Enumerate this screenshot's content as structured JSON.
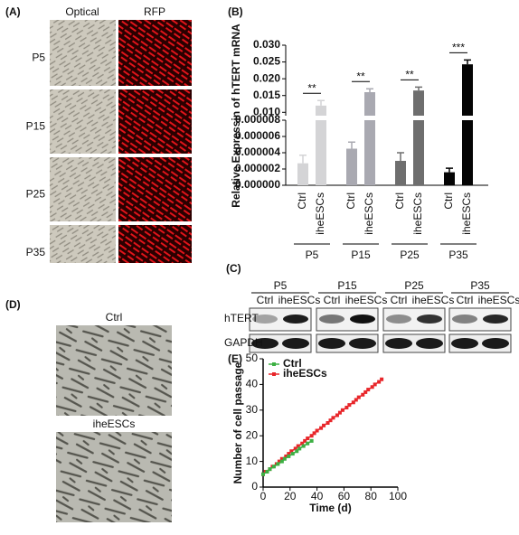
{
  "panel_labels": [
    "(A)",
    "(B)",
    "(C)",
    "(D)",
    "(E)"
  ],
  "panel_a": {
    "columns": [
      "Optical",
      "RFP"
    ],
    "rows": [
      "P5",
      "P15",
      "P25",
      "P35"
    ]
  },
  "panel_c": {
    "groups": [
      "P5",
      "P15",
      "P25",
      "P35"
    ],
    "lanes": [
      "Ctrl",
      "iheESCs"
    ],
    "rows": [
      "hTERT",
      "GAPDH"
    ]
  },
  "panel_d": {
    "labels": [
      "Ctrl",
      "iheESCs"
    ]
  },
  "chart_data": [
    {
      "type": "bar",
      "y_label": "Relative Expressin of hTERT mRNA",
      "categories": [
        "P5",
        "P15",
        "P25",
        "P35"
      ],
      "colors": [
        "#d4d4d6",
        "#a9a9b1",
        "#6e6e6e",
        "#050505"
      ],
      "series": [
        {
          "name": "Ctrl",
          "values": [
            2.7e-06,
            4.5e-06,
            3e-06,
            1.6e-06
          ],
          "errors": [
            1e-06,
            8e-07,
            1e-06,
            5e-07
          ]
        },
        {
          "name": "iheESCs",
          "axis": "y2",
          "values": [
            0.012,
            0.016,
            0.0165,
            0.0243
          ],
          "errors": [
            0.0015,
            0.001,
            0.001,
            0.0013
          ]
        }
      ],
      "annotations": [
        "**",
        "**",
        "**",
        "***"
      ],
      "ylim": [
        0,
        8e-06
      ],
      "yticks": [
        {
          "value": 0,
          "label": "0.000000"
        },
        2e-06,
        4e-06,
        6e-06,
        8e-06
      ],
      "y2lim": [
        0.009,
        0.03
      ],
      "y2ticks": [
        {
          "value": 0.01,
          "label": "0.010"
        },
        0.015,
        {
          "value": 0.02,
          "label": "0.020"
        },
        0.025,
        {
          "value": 0.03,
          "label": "0.030"
        }
      ]
    },
    {
      "type": "line",
      "x_label": "Time (d)",
      "y_label": "Number of cell passage",
      "legend": "top-left",
      "series": [
        {
          "name": "Ctrl",
          "color": "#3cb043",
          "x": [
            0,
            3,
            5,
            8,
            11,
            14,
            16,
            19,
            22,
            25,
            27,
            30,
            33,
            36
          ],
          "values": [
            5,
            6,
            7,
            8,
            9,
            10,
            11,
            12,
            13,
            14,
            15,
            16,
            17,
            18
          ]
        },
        {
          "name": "iheESCs",
          "color": "#e8262a",
          "x": [
            0,
            2,
            5,
            7,
            10,
            12,
            14,
            17,
            19,
            21,
            24,
            26,
            29,
            31,
            33,
            36,
            38,
            40,
            43,
            45,
            48,
            50,
            52,
            55,
            57,
            59,
            62,
            64,
            67,
            69,
            71,
            74,
            76,
            78,
            81,
            83,
            86,
            88
          ],
          "values": [
            5,
            6,
            7,
            8,
            9,
            10,
            11,
            12,
            13,
            14,
            15,
            16,
            17,
            18,
            19,
            20,
            21,
            22,
            23,
            24,
            25,
            26,
            27,
            28,
            29,
            30,
            31,
            32,
            33,
            34,
            35,
            36,
            37,
            38,
            39,
            40,
            41,
            42
          ]
        }
      ],
      "xlim": [
        0,
        100
      ],
      "xticks": [
        0,
        20,
        40,
        60,
        80,
        100
      ],
      "ylim": [
        0,
        50
      ],
      "yticks": [
        0,
        10,
        20,
        30,
        40,
        50
      ]
    }
  ]
}
